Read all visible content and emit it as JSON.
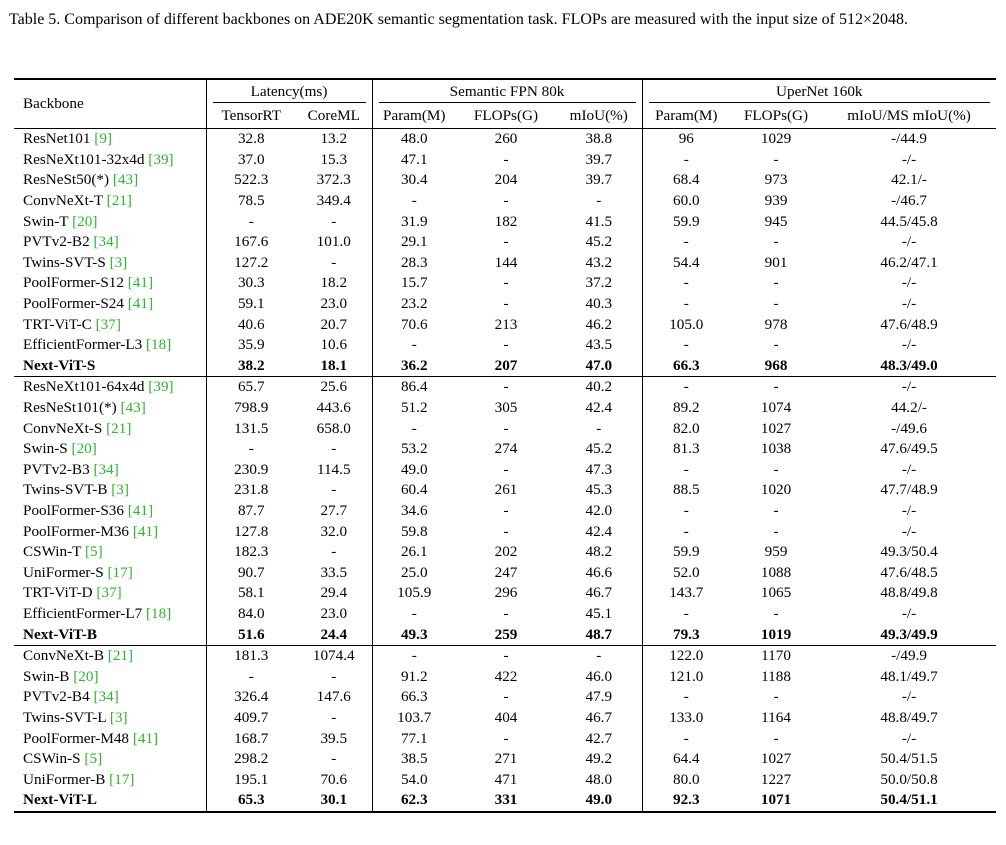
{
  "caption": "Table 5.  Comparison of different backbones on ADE20K semantic segmentation task.  FLOPs are measured with the input size of 512×2048.",
  "headers": {
    "backbone": "Backbone",
    "latency_group": "Latency(ms)",
    "fpn_group": "Semantic FPN 80k",
    "upernet_group": "UperNet 160k",
    "cols": [
      "TensorRT",
      "CoreML",
      "Param(M)",
      "FLOPs(G)",
      "mIoU(%)",
      "Param(M)",
      "FLOPs(G)",
      "mIoU/MS mIoU(%)"
    ]
  },
  "groups": [
    [
      {
        "name": "ResNet101",
        "cite": "[9]",
        "bold": false,
        "cells": [
          "32.8",
          "13.2",
          "48.0",
          "260",
          "38.8",
          "96",
          "1029",
          "-/44.9"
        ]
      },
      {
        "name": "ResNeXt101-32x4d",
        "cite": "[39]",
        "bold": false,
        "cells": [
          "37.0",
          "15.3",
          "47.1",
          "-",
          "39.7",
          "-",
          "-",
          "-/-"
        ]
      },
      {
        "name": "ResNeSt50(*)",
        "cite": "[43]",
        "bold": false,
        "cells": [
          "522.3",
          "372.3",
          "30.4",
          "204",
          "39.7",
          "68.4",
          "973",
          "42.1/-"
        ]
      },
      {
        "name": "ConvNeXt-T",
        "cite": "[21]",
        "bold": false,
        "cells": [
          "78.5",
          "349.4",
          "-",
          "-",
          "-",
          "60.0",
          "939",
          "-/46.7"
        ]
      },
      {
        "name": "Swin-T",
        "cite": "[20]",
        "bold": false,
        "cells": [
          "-",
          "-",
          "31.9",
          "182",
          "41.5",
          "59.9",
          "945",
          "44.5/45.8"
        ]
      },
      {
        "name": "PVTv2-B2",
        "cite": "[34]",
        "bold": false,
        "cells": [
          "167.6",
          "101.0",
          "29.1",
          "-",
          "45.2",
          "-",
          "-",
          "-/-"
        ]
      },
      {
        "name": "Twins-SVT-S",
        "cite": "[3]",
        "bold": false,
        "cells": [
          "127.2",
          "-",
          "28.3",
          "144",
          "43.2",
          "54.4",
          "901",
          "46.2/47.1"
        ]
      },
      {
        "name": "PoolFormer-S12",
        "cite": "[41]",
        "bold": false,
        "cells": [
          "30.3",
          "18.2",
          "15.7",
          "-",
          "37.2",
          "-",
          "-",
          "-/-"
        ]
      },
      {
        "name": "PoolFormer-S24",
        "cite": "[41]",
        "bold": false,
        "cells": [
          "59.1",
          "23.0",
          "23.2",
          "-",
          "40.3",
          "-",
          "-",
          "-/-"
        ]
      },
      {
        "name": "TRT-ViT-C",
        "cite": "[37]",
        "bold": false,
        "cells": [
          "40.6",
          "20.7",
          "70.6",
          "213",
          "46.2",
          "105.0",
          "978",
          "47.6/48.9"
        ]
      },
      {
        "name": "EfficientFormer-L3",
        "cite": "[18]",
        "bold": false,
        "cells": [
          "35.9",
          "10.6",
          "-",
          "-",
          "43.5",
          "-",
          "-",
          "-/-"
        ]
      },
      {
        "name": "Next-ViT-S",
        "cite": "",
        "bold": true,
        "cells": [
          "38.2",
          "18.1",
          "36.2",
          "207",
          "47.0",
          "66.3",
          "968",
          "48.3/49.0"
        ]
      }
    ],
    [
      {
        "name": "ResNeXt101-64x4d",
        "cite": "[39]",
        "bold": false,
        "cells": [
          "65.7",
          "25.6",
          "86.4",
          "-",
          "40.2",
          "-",
          "-",
          "-/-"
        ]
      },
      {
        "name": "ResNeSt101(*)",
        "cite": "[43]",
        "bold": false,
        "cells": [
          "798.9",
          "443.6",
          "51.2",
          "305",
          "42.4",
          "89.2",
          "1074",
          "44.2/-"
        ]
      },
      {
        "name": "ConvNeXt-S",
        "cite": "[21]",
        "bold": false,
        "cells": [
          "131.5",
          "658.0",
          "-",
          "-",
          "-",
          "82.0",
          "1027",
          "-/49.6"
        ]
      },
      {
        "name": "Swin-S",
        "cite": "[20]",
        "bold": false,
        "cells": [
          "-",
          "-",
          "53.2",
          "274",
          "45.2",
          "81.3",
          "1038",
          "47.6/49.5"
        ]
      },
      {
        "name": "PVTv2-B3",
        "cite": "[34]",
        "bold": false,
        "cells": [
          "230.9",
          "114.5",
          "49.0",
          "-",
          "47.3",
          "-",
          "-",
          "-/-"
        ]
      },
      {
        "name": "Twins-SVT-B",
        "cite": "[3]",
        "bold": false,
        "cells": [
          "231.8",
          "-",
          "60.4",
          "261",
          "45.3",
          "88.5",
          "1020",
          "47.7/48.9"
        ]
      },
      {
        "name": "PoolFormer-S36",
        "cite": "[41]",
        "bold": false,
        "cells": [
          "87.7",
          "27.7",
          "34.6",
          "-",
          "42.0",
          "-",
          "-",
          "-/-"
        ]
      },
      {
        "name": "PoolFormer-M36",
        "cite": "[41]",
        "bold": false,
        "cells": [
          "127.8",
          "32.0",
          "59.8",
          "-",
          "42.4",
          "-",
          "-",
          "-/-"
        ]
      },
      {
        "name": "CSWin-T",
        "cite": "[5]",
        "bold": false,
        "cells": [
          "182.3",
          "-",
          "26.1",
          "202",
          "48.2",
          "59.9",
          "959",
          "49.3/50.4"
        ]
      },
      {
        "name": "UniFormer-S",
        "cite": "[17]",
        "bold": false,
        "cells": [
          "90.7",
          "33.5",
          "25.0",
          "247",
          "46.6",
          "52.0",
          "1088",
          "47.6/48.5"
        ]
      },
      {
        "name": "TRT-ViT-D",
        "cite": "[37]",
        "bold": false,
        "cells": [
          "58.1",
          "29.4",
          "105.9",
          "296",
          "46.7",
          "143.7",
          "1065",
          "48.8/49.8"
        ]
      },
      {
        "name": "EfficientFormer-L7",
        "cite": "[18]",
        "bold": false,
        "cells": [
          "84.0",
          "23.0",
          "-",
          "-",
          "45.1",
          "-",
          "-",
          "-/-"
        ]
      },
      {
        "name": "Next-ViT-B",
        "cite": "",
        "bold": true,
        "cells": [
          "51.6",
          "24.4",
          "49.3",
          "259",
          "48.7",
          "79.3",
          "1019",
          "49.3/49.9"
        ]
      }
    ],
    [
      {
        "name": "ConvNeXt-B",
        "cite": "[21]",
        "bold": false,
        "cells": [
          "181.3",
          "1074.4",
          "-",
          "-",
          "-",
          "122.0",
          "1170",
          "-/49.9"
        ]
      },
      {
        "name": "Swin-B",
        "cite": "[20]",
        "bold": false,
        "cells": [
          "-",
          "-",
          "91.2",
          "422",
          "46.0",
          "121.0",
          "1188",
          "48.1/49.7"
        ]
      },
      {
        "name": "PVTv2-B4",
        "cite": "[34]",
        "bold": false,
        "cells": [
          "326.4",
          "147.6",
          "66.3",
          "-",
          "47.9",
          "-",
          "-",
          "-/-"
        ]
      },
      {
        "name": "Twins-SVT-L",
        "cite": "[3]",
        "bold": false,
        "cells": [
          "409.7",
          "-",
          "103.7",
          "404",
          "46.7",
          "133.0",
          "1164",
          "48.8/49.7"
        ]
      },
      {
        "name": "PoolFormer-M48",
        "cite": "[41]",
        "bold": false,
        "cells": [
          "168.7",
          "39.5",
          "77.1",
          "-",
          "42.7",
          "-",
          "-",
          "-/-"
        ]
      },
      {
        "name": "CSWin-S",
        "cite": "[5]",
        "bold": false,
        "cells": [
          "298.2",
          "-",
          "38.5",
          "271",
          "49.2",
          "64.4",
          "1027",
          "50.4/51.5"
        ]
      },
      {
        "name": "UniFormer-B",
        "cite": "[17]",
        "bold": false,
        "cells": [
          "195.1",
          "70.6",
          "54.0",
          "471",
          "48.0",
          "80.0",
          "1227",
          "50.0/50.8"
        ]
      },
      {
        "name": "Next-ViT-L",
        "cite": "",
        "bold": true,
        "cells": [
          "65.3",
          "30.1",
          "62.3",
          "331",
          "49.0",
          "92.3",
          "1071",
          "50.4/51.1"
        ]
      }
    ]
  ]
}
